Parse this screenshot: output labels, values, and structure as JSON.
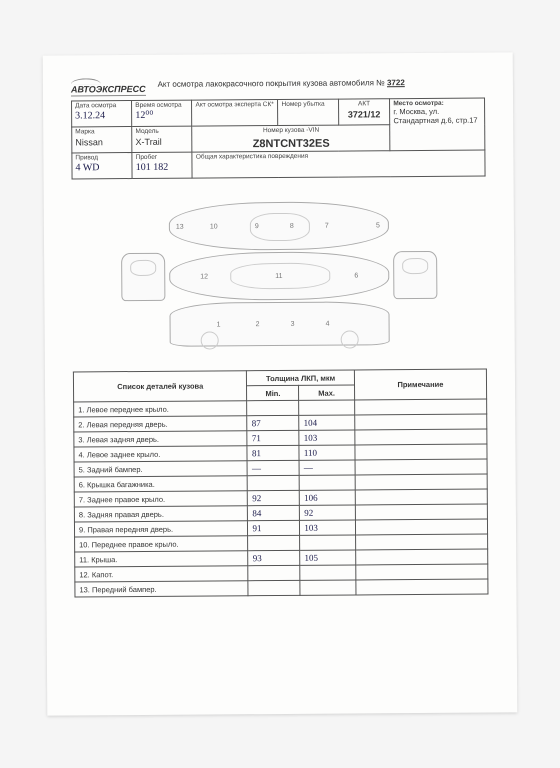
{
  "doc": {
    "logo": "АВТОЭКСПРЕСС",
    "title_prefix": "Акт осмотра лакокрасочного покрытия кузова автомобиля №",
    "number": "3722"
  },
  "info": {
    "date_label": "Дата осмотра",
    "date": "3.12.24",
    "time_label": "Время осмотра",
    "time": "12⁰⁰",
    "expert_label": "Акт осмотра эксперта СК*",
    "expert": "",
    "loss_label": "Номер убытка",
    "loss": "",
    "act_label": "АКТ",
    "act": "3721/12",
    "place_label": "Место осмотра:",
    "place": "г. Москва, ул. Стандартная д.6, стр.17",
    "make_label": "Марка",
    "make": "Nissan",
    "model_label": "Модель",
    "model": "X-Trail",
    "vin_label": "Номер кузова -VIN",
    "vin": "Z8NTCNT32ES",
    "drive_label": "Привод",
    "drive": "4 WD",
    "mileage_label": "Пробег",
    "mileage": "101 182",
    "damage_label": "Общая характеристика повреждения",
    "damage": ""
  },
  "parts_table": {
    "col_parts": "Список деталей кузова",
    "col_thickness": "Толщина ЛКП, мкм",
    "col_min": "Min.",
    "col_max": "Max.",
    "col_note": "Примечание",
    "rows": [
      {
        "n": "1.",
        "name": "Левое переднее крыло.",
        "min": "",
        "max": ""
      },
      {
        "n": "2.",
        "name": "Левая передняя дверь.",
        "min": "87",
        "max": "104"
      },
      {
        "n": "3.",
        "name": "Левая задняя дверь.",
        "min": "71",
        "max": "103"
      },
      {
        "n": "4.",
        "name": "Левое заднее крыло.",
        "min": "81",
        "max": "110"
      },
      {
        "n": "5.",
        "name": "Задний бампер.",
        "min": "—",
        "max": "—"
      },
      {
        "n": "6.",
        "name": "Крышка багажника.",
        "min": "",
        "max": ""
      },
      {
        "n": "7.",
        "name": "Заднее правое крыло.",
        "min": "92",
        "max": "106"
      },
      {
        "n": "8.",
        "name": "Задняя правая дверь.",
        "min": "84",
        "max": "92"
      },
      {
        "n": "9.",
        "name": "Правая передняя дверь.",
        "min": "91",
        "max": "103"
      },
      {
        "n": "10.",
        "name": "Переднее правое крыло.",
        "min": "",
        "max": ""
      },
      {
        "n": "11.",
        "name": "Крыша.",
        "min": "93",
        "max": "105"
      },
      {
        "n": "12.",
        "name": "Капот.",
        "min": "",
        "max": ""
      },
      {
        "n": "13.",
        "name": "Передний бампер.",
        "min": "",
        "max": ""
      }
    ]
  }
}
